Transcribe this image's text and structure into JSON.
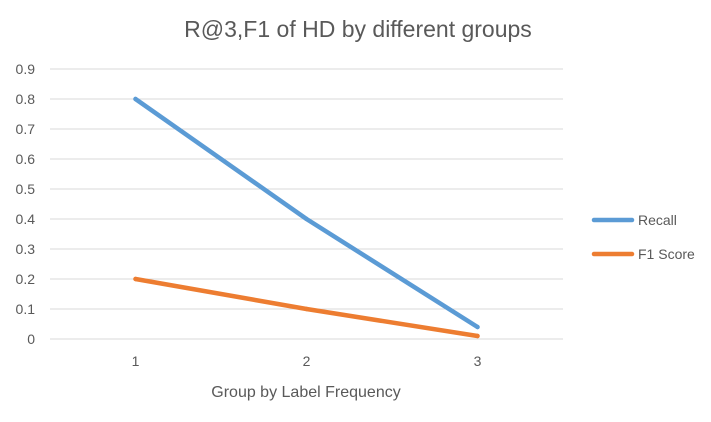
{
  "chart_data": {
    "type": "line",
    "title": "R@3,F1 of HD by different groups",
    "xlabel": "Group by Label Frequency",
    "ylabel": "",
    "categories": [
      "1",
      "2",
      "3"
    ],
    "yticks": [
      "0",
      "0.1",
      "0.2",
      "0.3",
      "0.4",
      "0.5",
      "0.6",
      "0.7",
      "0.8",
      "0.9"
    ],
    "ylim": [
      0,
      0.9
    ],
    "grid": true,
    "legend_position": "right",
    "series": [
      {
        "name": "Recall",
        "color": "#5b9bd5",
        "values": [
          0.8,
          0.4,
          0.04
        ]
      },
      {
        "name": "F1 Score",
        "color": "#ed7d31",
        "values": [
          0.2,
          0.1,
          0.01
        ]
      }
    ]
  }
}
